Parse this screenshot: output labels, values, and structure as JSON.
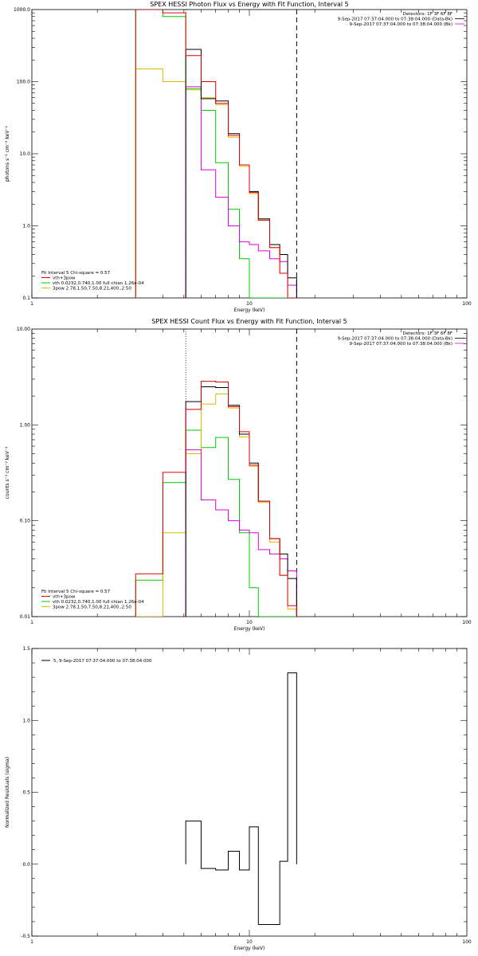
{
  "chart_data": [
    {
      "type": "line",
      "title": "SPEX HESSI Photon Flux vs Energy with Fit Function, Interval 5",
      "xlabel": "Energy (keV)",
      "ylabel": "photons s⁻¹ cm⁻² keV⁻¹",
      "xscale": "log",
      "yscale": "log",
      "xlim": [
        1,
        100
      ],
      "ylim": [
        0.1,
        1000
      ],
      "xticks": [
        {
          "value": 1,
          "label": "1"
        },
        {
          "value": 10,
          "label": "10"
        },
        {
          "value": 100,
          "label": "100"
        }
      ],
      "yticks": [
        {
          "value": 0.1,
          "label": "0.1"
        },
        {
          "value": 1,
          "label": "1.0"
        },
        {
          "value": 10,
          "label": "10.0"
        },
        {
          "value": 100,
          "label": "100.0"
        },
        {
          "value": 1000,
          "label": "1000.0"
        }
      ],
      "vlines": [
        {
          "x": 5.1,
          "style": "dotted"
        },
        {
          "x": 16.5,
          "style": "dashed"
        }
      ],
      "info_lines": [
        "Detectors: 1F 3F 6F 8F",
        "9-Sep-2017 07:37:04.000 to 07:38:04.000 (Data-Bk)",
        "9-Sep-2017 07:37:04.000 to 07:38:04.000 (Bk)"
      ],
      "legend": {
        "header": "Fit Interval 5   Chi-square = 0.57",
        "entries": [
          "vth+3pow",
          "vth 0.0232,0.740,1.00  full chian 1.26e-04",
          "3pow 2.78,1.50,7.50,8.21,400.,2.50"
        ]
      },
      "edges": [
        3,
        4,
        5.1,
        6,
        7,
        8,
        9,
        10,
        11,
        12.4,
        13.8,
        15,
        16.5
      ],
      "series": [
        {
          "name": "",
          "role": "data",
          "color": "#000000",
          "values": [
            null,
            null,
            280,
            58,
            54,
            19,
            7,
            3,
            1.25,
            0.55,
            0.4,
            0.19
          ]
        },
        {
          "name": "",
          "role": "background",
          "color": "#dd00dd",
          "values": [
            null,
            null,
            85,
            6,
            2.5,
            1,
            0.6,
            0.55,
            0.45,
            0.35,
            0.32,
            0.15
          ]
        },
        {
          "name": "vth+3pow",
          "color": "#dd0000",
          "values": [
            1000,
            900,
            230,
            100,
            50,
            18,
            7,
            2.9,
            1.2,
            0.5,
            0.22,
            0.1
          ]
        },
        {
          "name": "vth 0.0232,0.740,1.00  full chian 1.26e-04",
          "color": "#00cc00",
          "values": [
            1000,
            800,
            80,
            40,
            7.5,
            1.7,
            0.35,
            0.1,
            0.1,
            0.1,
            0.1,
            0.1
          ]
        },
        {
          "name": "3pow 2.78,1.50,7.50,8.21,400.,2.50",
          "color": "#ddbb00",
          "values": [
            150,
            100,
            77,
            60,
            48,
            17,
            6.7,
            2.8,
            1.2,
            0.5,
            0.22,
            0.1
          ]
        }
      ]
    },
    {
      "type": "line",
      "title": "SPEX HESSI Count Flux vs Energy with Fit Function, Interval 5",
      "xlabel": "Energy (keV)",
      "ylabel": "counts s⁻¹ cm⁻² keV⁻¹",
      "xscale": "log",
      "yscale": "log",
      "xlim": [
        1,
        100
      ],
      "ylim": [
        0.01,
        10
      ],
      "xticks": [
        {
          "value": 1,
          "label": "1"
        },
        {
          "value": 10,
          "label": "10"
        },
        {
          "value": 100,
          "label": "100"
        }
      ],
      "yticks": [
        {
          "value": 0.01,
          "label": "0.01"
        },
        {
          "value": 0.1,
          "label": "0.10"
        },
        {
          "value": 1,
          "label": "1.00"
        },
        {
          "value": 10,
          "label": "10.00"
        }
      ],
      "vlines": [
        {
          "x": 5.1,
          "style": "dotted"
        },
        {
          "x": 16.5,
          "style": "dashed"
        }
      ],
      "info_lines": [
        "Detectors: 1F 3F 6F 8F",
        "9-Sep-2017 07:37:04.000 to 07:38:04.000 (Data-Bk)",
        "9-Sep-2017 07:37:04.000 to 07:38:04.000 (Bk)"
      ],
      "legend": {
        "header": "Fit Interval 5   Chi-square = 0.57",
        "entries": [
          "vth+3pow",
          "vth 0.0232,0.740,1.00  full chian 1.26e-04",
          "3pow 2.78,1.50,7.50,8.21,400.,2.50"
        ]
      },
      "edges": [
        3,
        4,
        5.1,
        6,
        7,
        8,
        9,
        10,
        11,
        12.4,
        13.8,
        15,
        16.5
      ],
      "series": [
        {
          "name": "",
          "role": "data",
          "color": "#000000",
          "values": [
            null,
            null,
            1.75,
            2.5,
            2.45,
            1.6,
            0.8,
            0.4,
            0.16,
            0.065,
            0.045,
            0.025
          ]
        },
        {
          "name": "",
          "role": "background",
          "color": "#dd00dd",
          "values": [
            null,
            null,
            0.55,
            0.165,
            0.13,
            0.1,
            0.08,
            0.075,
            0.05,
            0.045,
            0.04,
            0.03
          ]
        },
        {
          "name": "vth+3pow",
          "color": "#dd0000",
          "values": [
            0.028,
            0.32,
            1.45,
            2.85,
            2.8,
            1.55,
            0.85,
            0.38,
            0.16,
            0.065,
            0.027,
            0.013
          ]
        },
        {
          "name": "vth 0.0232,0.740,1.00  full chian 1.26e-04",
          "color": "#00cc00",
          "values": [
            0.024,
            0.25,
            0.88,
            0.58,
            0.74,
            0.27,
            0.075,
            0.02,
            0.01,
            0.01,
            0.01,
            0.01
          ]
        },
        {
          "name": "3pow 2.78,1.50,7.50,8.21,400.,2.50",
          "color": "#ddbb00",
          "values": [
            0.01,
            0.075,
            0.5,
            1.65,
            2.1,
            1.5,
            0.75,
            0.37,
            0.155,
            0.06,
            0.027,
            0.012
          ]
        }
      ]
    },
    {
      "type": "line",
      "title": "",
      "xlabel": "Energy (keV)",
      "ylabel": "Normalized Residuals (sigma)",
      "xscale": "log",
      "yscale": "linear",
      "xlim": [
        1,
        100
      ],
      "ylim": [
        -0.5,
        1.5
      ],
      "xticks": [
        {
          "value": 1,
          "label": "1"
        },
        {
          "value": 10,
          "label": "10"
        },
        {
          "value": 100,
          "label": "100"
        }
      ],
      "yticks": [
        {
          "value": -0.5,
          "label": "-0.5"
        },
        {
          "value": 0,
          "label": "0.0"
        },
        {
          "value": 0.5,
          "label": "0.5"
        },
        {
          "value": 1,
          "label": "1.0"
        },
        {
          "value": 1.5,
          "label": "1.5"
        }
      ],
      "vlines": [],
      "info_lines": [],
      "legend": {
        "header": "",
        "entries": [
          "5,  9-Sep-2017 07:37:04.000 to 07:38:04.000"
        ]
      },
      "edges": [
        5.1,
        6,
        7,
        8,
        9,
        10,
        11,
        12.4,
        13.8,
        15,
        16.5
      ],
      "series": [
        {
          "name": "5,  9-Sep-2017 07:37:04.000 to 07:38:04.000",
          "color": "#000000",
          "values": [
            0.3,
            -0.03,
            -0.04,
            0.09,
            -0.04,
            0.26,
            -0.42,
            -0.42,
            0.02,
            1.33
          ]
        }
      ]
    }
  ]
}
